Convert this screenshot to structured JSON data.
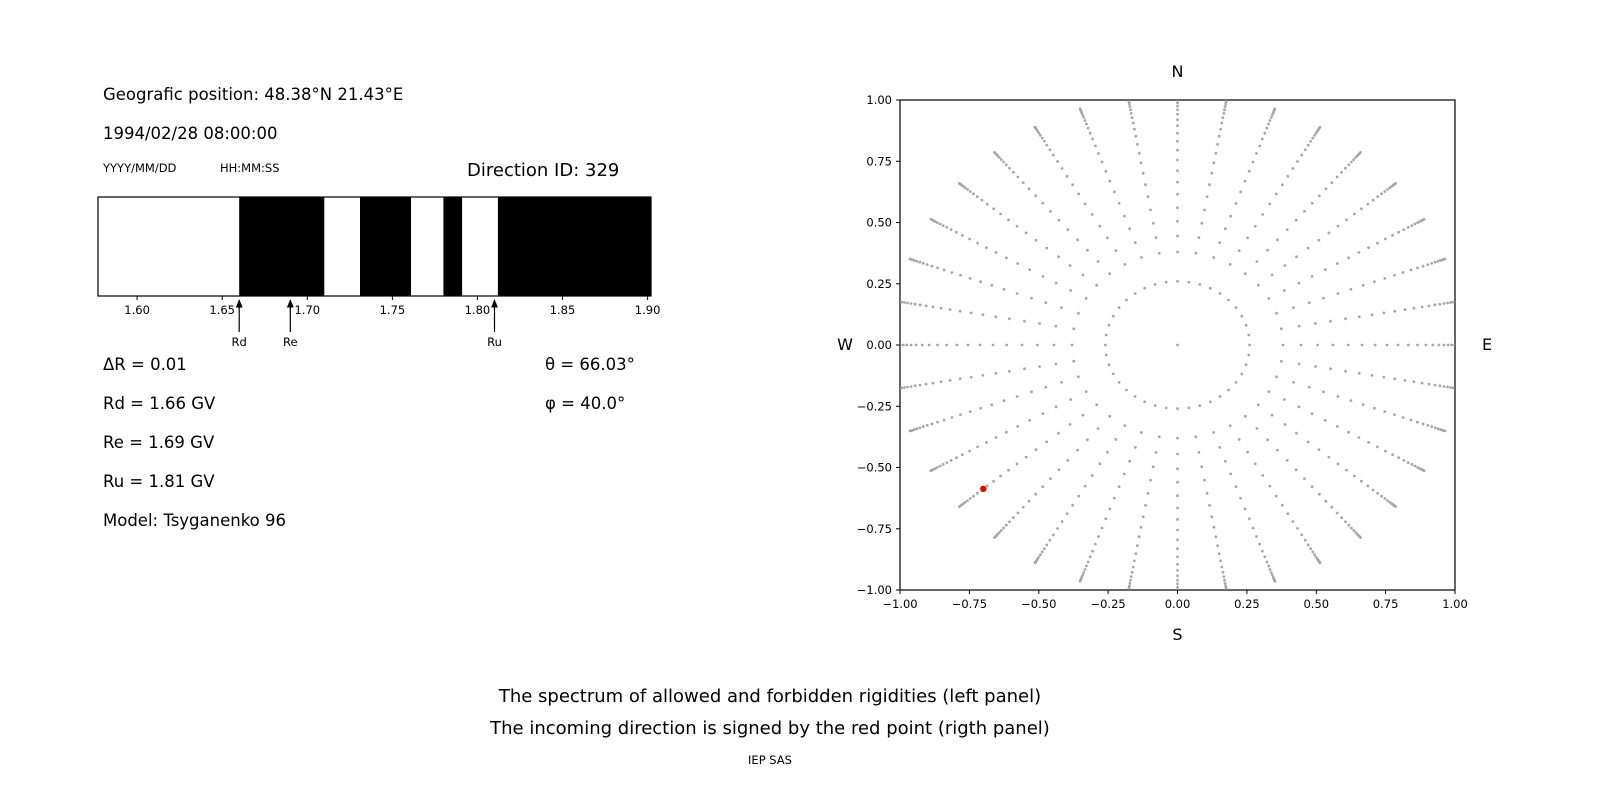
{
  "header": {
    "geo_position": "Geografic position: 48.38°N 21.43°E",
    "datetime": "1994/02/28 08:00:00",
    "date_format": "YYYY/MM/DD",
    "time_format": "HH:MM:SS",
    "direction_id": "Direction ID: 329"
  },
  "parameters": {
    "delta_r": "ΔR = 0.01",
    "rd": "Rd = 1.66 GV",
    "re": "Re = 1.69 GV",
    "ru": "Ru = 1.81 GV",
    "model": "Model: Tsyganenko 96",
    "theta": "θ = 66.03°",
    "phi": "φ = 40.0°"
  },
  "caption": {
    "line1": "The spectrum of allowed and forbidden rigidities (left panel)",
    "line2": "The incoming direction is signed by the red point (rigth panel)",
    "credit": "IEP SAS"
  },
  "chart_data": [
    {
      "type": "bar",
      "title": "Rigidity spectrum (black = bands, white = gaps)",
      "xlim": [
        1.577,
        1.902
      ],
      "xticks": [
        1.6,
        1.65,
        1.7,
        1.75,
        1.8,
        1.85,
        1.9
      ],
      "bands": [
        [
          1.66,
          1.71
        ],
        [
          1.731,
          1.761
        ],
        [
          1.78,
          1.791
        ],
        [
          1.812,
          1.902
        ]
      ],
      "band_color": "#000000",
      "markers": [
        {
          "label": "Rd",
          "value": 1.66
        },
        {
          "label": "Re",
          "value": 1.69
        },
        {
          "label": "Ru",
          "value": 1.81
        }
      ]
    },
    {
      "type": "scatter",
      "title": "Incoming direction map",
      "xlim": [
        -1.0,
        1.0
      ],
      "ylim": [
        -1.0,
        1.0
      ],
      "xticks": [
        -1.0,
        -0.75,
        -0.5,
        -0.25,
        0.0,
        0.25,
        0.5,
        0.75,
        1.0
      ],
      "yticks": [
        -1.0,
        -0.75,
        -0.5,
        -0.25,
        0.0,
        0.25,
        0.5,
        0.75,
        1.0
      ],
      "compass": {
        "top": "N",
        "bottom": "S",
        "left": "W",
        "right": "E"
      },
      "dot_color": "#8a8a8a",
      "pattern": {
        "center_dot": true,
        "ring": {
          "radius": 0.26,
          "count": 40
        },
        "spokes": {
          "count": 36,
          "start_angle_deg": 0,
          "radii": [
            0.38,
            0.445,
            0.505,
            0.56,
            0.615,
            0.665,
            0.712,
            0.755,
            0.795,
            0.832,
            0.865,
            0.895,
            0.92,
            0.942,
            0.96,
            0.975,
            0.988,
            0.999,
            1.008,
            1.015,
            1.021,
            1.026
          ]
        }
      },
      "red_point": {
        "x": -0.7,
        "y": -0.587,
        "color": "#e60000"
      }
    }
  ]
}
